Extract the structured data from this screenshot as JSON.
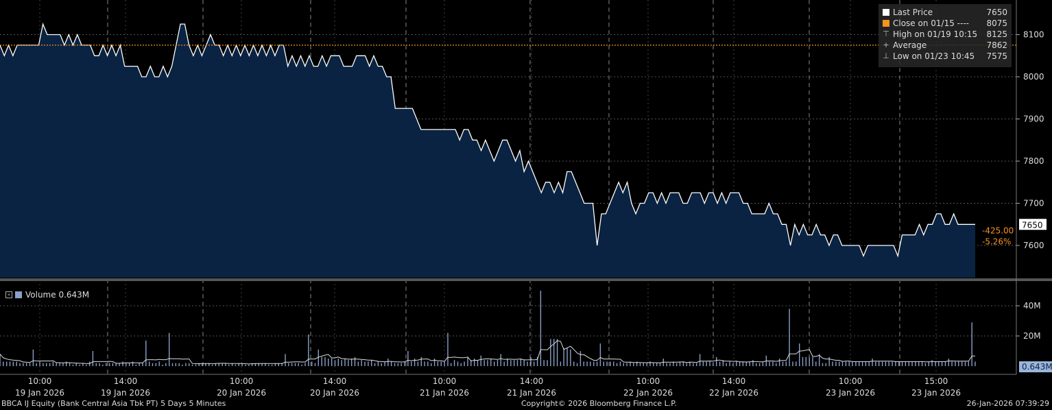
{
  "chart_data": {
    "type": "area",
    "security": "BBCA IJ Equity (Bank Central Asia Tbk PT) 5 Days 5 Minutes",
    "price_axis": {
      "ticks": [
        7600,
        7700,
        7800,
        7900,
        8000,
        8100
      ]
    },
    "volume_axis": {
      "ticks": [
        "20M",
        "40M"
      ]
    },
    "x_ticks": [
      {
        "time": "10:00",
        "date": "19 Jan 2026"
      },
      {
        "time": "14:00",
        "date": "19 Jan 2026"
      },
      {
        "time": "10:00",
        "date": "20 Jan 2026"
      },
      {
        "time": "14:00",
        "date": "20 Jan 2026"
      },
      {
        "time": "10:00",
        "date": "21 Jan 2026"
      },
      {
        "time": "14:00",
        "date": "21 Jan 2026"
      },
      {
        "time": "10:00",
        "date": "22 Jan 2026"
      },
      {
        "time": "14:00",
        "date": "22 Jan 2026"
      },
      {
        "time": "10:00",
        "date": "23 Jan 2026"
      },
      {
        "time": "15:00",
        "date": "23 Jan 2026"
      }
    ],
    "price_series": [
      8075,
      8050,
      8075,
      8050,
      8075,
      8075,
      8075,
      8075,
      8075,
      8075,
      8125,
      8100,
      8100,
      8100,
      8100,
      8075,
      8100,
      8075,
      8100,
      8075,
      8075,
      8075,
      8050,
      8050,
      8075,
      8050,
      8075,
      8050,
      8075,
      8025,
      8025,
      8025,
      8025,
      8000,
      8000,
      8025,
      8000,
      8000,
      8025,
      8000,
      8025,
      8075,
      8125,
      8125,
      8075,
      8050,
      8075,
      8050,
      8075,
      8100,
      8075,
      8075,
      8050,
      8075,
      8050,
      8075,
      8050,
      8075,
      8050,
      8075,
      8050,
      8075,
      8050,
      8075,
      8050,
      8075,
      8075,
      8025,
      8050,
      8025,
      8050,
      8025,
      8050,
      8025,
      8025,
      8050,
      8025,
      8050,
      8050,
      8050,
      8025,
      8025,
      8025,
      8050,
      8050,
      8050,
      8025,
      8050,
      8025,
      8025,
      8000,
      8000,
      7925,
      7925,
      7925,
      7925,
      7925,
      7900,
      7875,
      7875,
      7875,
      7875,
      7875,
      7875,
      7875,
      7875,
      7875,
      7850,
      7875,
      7875,
      7850,
      7850,
      7825,
      7850,
      7825,
      7800,
      7825,
      7850,
      7850,
      7825,
      7800,
      7825,
      7775,
      7800,
      7775,
      7750,
      7725,
      7750,
      7750,
      7725,
      7750,
      7725,
      7775,
      7775,
      7750,
      7725,
      7700,
      7700,
      7700,
      7600,
      7675,
      7675,
      7700,
      7725,
      7750,
      7725,
      7750,
      7700,
      7675,
      7700,
      7700,
      7725,
      7725,
      7700,
      7725,
      7700,
      7725,
      7725,
      7725,
      7700,
      7700,
      7725,
      7725,
      7725,
      7700,
      7725,
      7725,
      7700,
      7725,
      7700,
      7725,
      7725,
      7725,
      7700,
      7700,
      7675,
      7675,
      7675,
      7675,
      7700,
      7675,
      7675,
      7650,
      7650,
      7600,
      7650,
      7625,
      7650,
      7625,
      7625,
      7650,
      7625,
      7625,
      7600,
      7625,
      7625,
      7600,
      7600,
      7600,
      7600,
      7600,
      7575,
      7600,
      7600,
      7600,
      7600,
      7600,
      7600,
      7600,
      7575,
      7625,
      7625,
      7625,
      7625,
      7650,
      7625,
      7650,
      7650,
      7675,
      7675,
      7650,
      7650,
      7675,
      7650,
      7650,
      7650,
      7650,
      7650
    ],
    "volume_series_m": [
      8,
      3,
      3,
      3,
      3,
      3,
      2,
      2,
      2,
      2,
      11,
      2,
      3,
      2,
      2,
      2,
      3,
      2,
      2,
      2,
      3,
      2,
      1,
      2,
      1,
      2,
      1,
      3,
      10,
      2,
      2,
      1,
      2,
      2,
      2,
      2,
      2,
      3,
      2,
      2,
      3,
      1,
      2,
      2,
      17,
      3,
      2,
      2,
      3,
      1,
      2,
      22,
      2,
      2,
      2,
      1,
      2,
      2,
      1,
      1,
      2,
      2,
      2,
      2,
      1,
      2,
      2,
      2,
      2,
      1,
      2,
      1,
      2,
      2,
      1,
      1,
      2,
      2,
      2,
      2,
      2,
      1,
      1,
      2,
      2,
      2,
      8,
      2,
      2,
      2,
      2,
      1,
      2,
      21,
      3,
      2,
      11,
      6,
      6,
      5,
      5,
      4,
      5,
      4,
      5,
      4,
      5,
      6,
      3,
      4,
      3,
      3,
      4,
      2,
      3,
      2,
      3,
      5,
      3,
      2,
      2,
      2,
      3,
      10,
      3,
      5,
      3,
      6,
      3,
      3,
      2,
      5,
      3,
      3,
      3,
      22,
      2,
      4,
      3,
      2,
      3,
      6,
      4,
      5,
      4,
      7,
      4,
      4,
      5,
      3,
      4,
      8,
      3,
      5,
      4,
      4,
      4,
      5,
      4,
      3,
      6,
      3,
      6,
      50,
      4,
      4,
      18,
      18,
      18,
      3,
      12,
      12,
      11,
      3,
      2,
      10,
      3,
      3,
      3,
      3,
      3,
      15,
      3,
      3,
      3,
      3,
      2,
      3,
      2,
      2,
      3,
      2,
      3,
      2,
      2,
      2,
      3,
      2,
      2,
      2,
      5,
      2,
      2,
      3,
      2,
      3,
      3,
      2,
      3,
      2,
      2,
      8,
      3,
      3,
      3,
      2,
      6,
      3,
      4,
      2,
      3,
      2,
      3,
      3,
      3,
      3,
      3,
      4,
      2,
      2,
      3,
      7,
      3,
      3,
      2,
      5,
      3,
      3,
      38,
      3,
      3,
      15,
      6,
      6,
      6,
      6,
      3,
      8,
      2,
      2,
      6,
      3,
      3,
      3,
      3,
      3,
      3,
      3,
      3,
      3,
      3,
      3,
      3,
      5,
      3,
      3,
      3,
      3,
      3,
      3,
      3,
      3,
      3,
      3,
      3,
      3,
      3,
      3,
      3,
      2,
      3,
      4,
      3,
      3,
      3,
      3,
      5,
      3,
      3,
      3,
      3,
      3,
      3,
      29,
      3
    ],
    "close_ref": 8075,
    "last_price_change": "-425.00",
    "last_price_pct": "-5.26%",
    "last_price_label": "7650",
    "volume_label": "0.643M"
  },
  "legend": {
    "last_price": {
      "label": "Last Price",
      "value": "7650",
      "color": "#ffffff"
    },
    "close": {
      "label": "Close on 01/15 ----",
      "value": "8075",
      "color": "#f7931e"
    },
    "high": {
      "label": "High on 01/19 10:15",
      "value": "8125"
    },
    "average": {
      "label": "Average",
      "value": "7862"
    },
    "low": {
      "label": "Low on 01/23 10:45",
      "value": "7575"
    }
  },
  "volume_legend": {
    "label": "Volume 0.643M"
  },
  "footer": {
    "left": "BBCA IJ Equity (Bank Central Asia Tbk PT) 5 Days 5 Minutes",
    "center": "Copyright© 2026 Bloomberg Finance L.P.",
    "right": "26-Jan-2026 07:39:29"
  },
  "colors": {
    "area": "#0a2342",
    "line": "#ffffff",
    "close_line": "#f7931e",
    "volume": "#8aa0c8",
    "grid": "#555555"
  }
}
